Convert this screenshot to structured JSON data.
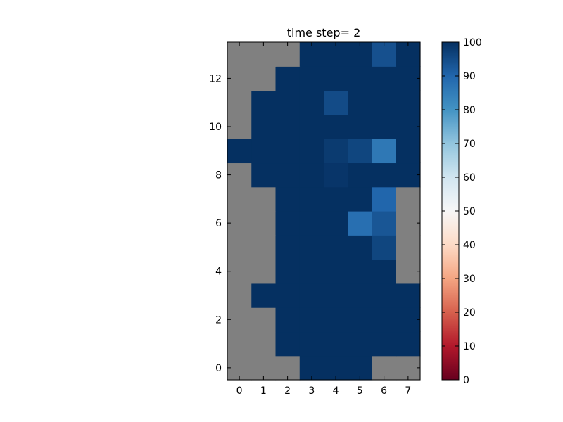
{
  "chart_data": {
    "type": "heatmap",
    "title": "time step= 2",
    "xlabel": "",
    "ylabel": "",
    "x_ticks": [
      "0",
      "1",
      "2",
      "3",
      "4",
      "5",
      "6",
      "7"
    ],
    "y_ticks": [
      "0",
      "2",
      "4",
      "6",
      "8",
      "10",
      "12"
    ],
    "xlim": [
      -0.5,
      7.5
    ],
    "ylim": [
      -0.5,
      13.5
    ],
    "origin": "lower",
    "missing_color": "#808080",
    "colormap": "RdBu",
    "colorbar": {
      "min": 0,
      "max": 100,
      "ticks": [
        "0",
        "10",
        "20",
        "30",
        "40",
        "50",
        "60",
        "70",
        "80",
        "90",
        "100"
      ]
    },
    "grid": false,
    "rows": [
      [
        null,
        null,
        null,
        100,
        100,
        100,
        null,
        null
      ],
      [
        null,
        null,
        100,
        100,
        100,
        100,
        100,
        100
      ],
      [
        null,
        null,
        100,
        100,
        100,
        100,
        100,
        100
      ],
      [
        null,
        100,
        100,
        100,
        100,
        100,
        100,
        100
      ],
      [
        null,
        null,
        100,
        100,
        100,
        100,
        100,
        null
      ],
      [
        null,
        null,
        100,
        100,
        100,
        100,
        96,
        null
      ],
      [
        null,
        null,
        100,
        100,
        100,
        88,
        93,
        null
      ],
      [
        null,
        null,
        100,
        100,
        100,
        100,
        90,
        null
      ],
      [
        null,
        100,
        100,
        100,
        99,
        100,
        100,
        100
      ],
      [
        100,
        100,
        100,
        100,
        98,
        96,
        86,
        100
      ],
      [
        null,
        100,
        100,
        100,
        100,
        100,
        100,
        100
      ],
      [
        null,
        100,
        100,
        100,
        95,
        100,
        100,
        100
      ],
      [
        null,
        null,
        100,
        100,
        100,
        100,
        100,
        100
      ],
      [
        null,
        null,
        null,
        100,
        100,
        100,
        94,
        100
      ]
    ]
  }
}
